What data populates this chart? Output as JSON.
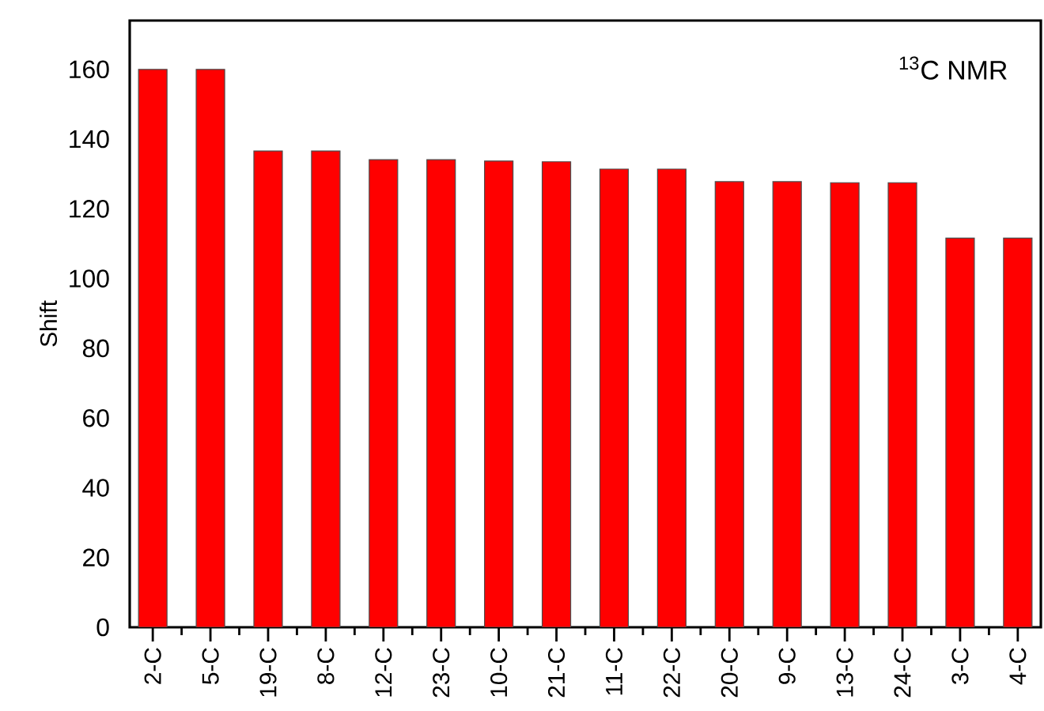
{
  "chart_data": {
    "type": "bar",
    "ylabel": "Shift",
    "categories": [
      "2-C",
      "5-C",
      "19-C",
      "8-C",
      "12-C",
      "23-C",
      "10-C",
      "21-C",
      "11-C",
      "22-C",
      "20-C",
      "9-C",
      "13-C",
      "24-C",
      "3-C",
      "4-C"
    ],
    "values": [
      160,
      160,
      136.6,
      136.6,
      134.1,
      134.1,
      133.7,
      133.5,
      131.4,
      131.4,
      127.8,
      127.8,
      127.5,
      127.5,
      111.6,
      111.6
    ],
    "color": "#ff0000",
    "ylim": [
      0,
      174
    ],
    "yticks": [
      0,
      20,
      40,
      60,
      80,
      100,
      120,
      140,
      160
    ],
    "grid": false,
    "annotations": [
      "$^{13}$C NMR"
    ]
  }
}
